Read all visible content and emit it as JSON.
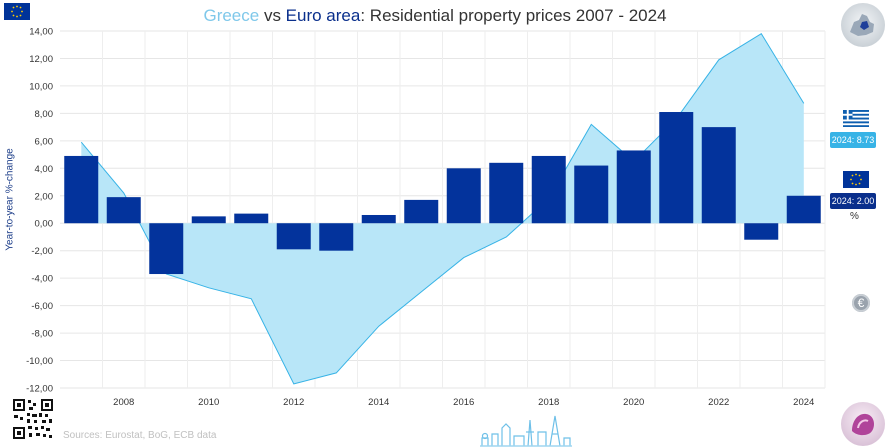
{
  "title": {
    "part1": "Greece",
    "part2": " vs ",
    "part3": "Euro area",
    "part4": ": Residential property prices 2007 - 2024"
  },
  "source": "Sources: Eurostat, BoG, ECB data",
  "badges": {
    "greece": "2024: 8.73",
    "euro_area": "2024: 2.00",
    "unit": "%"
  },
  "euro_button": "€",
  "colors": {
    "greece_fill": "#b8e6f8",
    "greece_line": "#37b3e6",
    "euro_bar": "#03339c",
    "grid": "#e6e6e6"
  },
  "icons": [
    "eu-flag-icon",
    "greece-flag-icon",
    "euro-icon",
    "qr-code-icon",
    "europe-map-icon",
    "skyline-icon"
  ],
  "chart_data": {
    "type": "bar",
    "ylabel": "Year-to-year %-change",
    "ylim": [
      -12,
      14
    ],
    "yticks": [
      "14,00",
      "12,00",
      "10,00",
      "8,00",
      "6,00",
      "4,00",
      "2,00",
      "0,00",
      "-2,00",
      "-4,00",
      "-6,00",
      "-8,00",
      "-10,00",
      "-12,00"
    ],
    "xticks": [
      "2008",
      "2010",
      "2012",
      "2014",
      "2016",
      "2018",
      "2020",
      "2022",
      "2024"
    ],
    "x": [
      2007,
      2008,
      2009,
      2010,
      2011,
      2012,
      2013,
      2014,
      2015,
      2016,
      2017,
      2018,
      2019,
      2020,
      2021,
      2022,
      2023,
      2024
    ],
    "series": [
      {
        "type": "area",
        "values": [
          5.9,
          2.2,
          -3.7,
          -4.7,
          -5.5,
          -11.7,
          -10.9,
          -7.5,
          -5.0,
          -2.5,
          -1.0,
          1.8,
          7.2,
          4.5,
          7.6,
          11.9,
          13.8,
          8.73
        ]
      },
      {
        "type": "bar",
        "values": [
          4.9,
          1.9,
          -3.7,
          0.5,
          0.7,
          -1.9,
          -2.0,
          0.6,
          1.7,
          4.0,
          4.4,
          4.9,
          4.2,
          5.3,
          8.1,
          7.0,
          -1.2,
          2.0
        ]
      }
    ]
  }
}
